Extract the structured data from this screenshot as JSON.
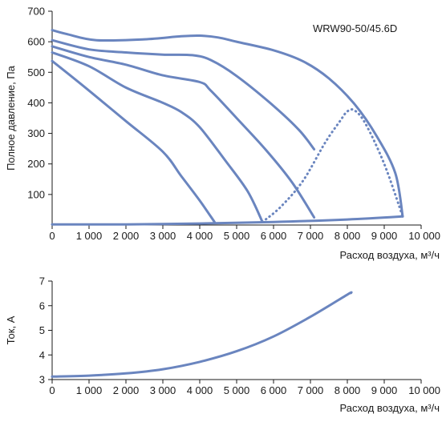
{
  "chart_data": [
    {
      "type": "line",
      "title": "",
      "model_label": "WRW90-50/45.6D",
      "ylabel": "Полное давление, Па",
      "xlabel": "Расход воздуха, м³/ч",
      "xlim": [
        0,
        10000
      ],
      "ylim": [
        0,
        700
      ],
      "x_ticks": [
        0,
        1000,
        2000,
        3000,
        4000,
        5000,
        6000,
        7000,
        8000,
        9000,
        10000
      ],
      "x_tick_labels": [
        "0",
        "1 000",
        "2 000",
        "3 000",
        "4 000",
        "5 000",
        "6 000",
        "7 000",
        "8 000",
        "9 000",
        "10 000"
      ],
      "y_ticks": [
        100,
        200,
        300,
        400,
        500,
        600,
        700
      ],
      "y_tick_labels": [
        "100",
        "200",
        "300",
        "400",
        "500",
        "600",
        "700"
      ],
      "grid": false,
      "colors": {
        "curve": "#6a85bf",
        "text": "#1a1a1a",
        "axis": "#1a1a1a"
      },
      "series": [
        {
          "style": "solid",
          "points": [
            [
              0,
              638
            ],
            [
              400,
              625
            ],
            [
              1200,
              605
            ],
            [
              2500,
              608
            ],
            [
              3500,
              618
            ],
            [
              4000,
              620
            ],
            [
              4500,
              614
            ],
            [
              5000,
              600
            ],
            [
              6000,
              572
            ],
            [
              6800,
              536
            ],
            [
              7500,
              480
            ],
            [
              8200,
              395
            ],
            [
              8800,
              290
            ],
            [
              9300,
              170
            ],
            [
              9500,
              28
            ]
          ]
        },
        {
          "style": "solid",
          "points": [
            [
              0,
              605
            ],
            [
              1000,
              575
            ],
            [
              2000,
              565
            ],
            [
              3000,
              558
            ],
            [
              3800,
              556
            ],
            [
              4300,
              540
            ],
            [
              5000,
              488
            ],
            [
              6000,
              390
            ],
            [
              6700,
              310
            ],
            [
              7100,
              248
            ]
          ]
        },
        {
          "style": "solid",
          "points": [
            [
              0,
              585
            ],
            [
              1000,
              550
            ],
            [
              2000,
              525
            ],
            [
              3000,
              490
            ],
            [
              4000,
              468
            ],
            [
              4300,
              440
            ],
            [
              5000,
              350
            ],
            [
              5800,
              245
            ],
            [
              6500,
              140
            ],
            [
              7100,
              25
            ]
          ]
        },
        {
          "style": "solid",
          "points": [
            [
              0,
              565
            ],
            [
              1000,
              520
            ],
            [
              2000,
              450
            ],
            [
              3000,
              400
            ],
            [
              3500,
              370
            ],
            [
              4000,
              320
            ],
            [
              4700,
              210
            ],
            [
              5300,
              110
            ],
            [
              5700,
              10
            ]
          ]
        },
        {
          "style": "solid",
          "points": [
            [
              0,
              537
            ],
            [
              1000,
              440
            ],
            [
              2000,
              340
            ],
            [
              3000,
              240
            ],
            [
              3500,
              160
            ],
            [
              4000,
              80
            ],
            [
              4400,
              10
            ]
          ]
        },
        {
          "style": "solid",
          "points": [
            [
              0,
              2
            ],
            [
              2000,
              2
            ],
            [
              4000,
              5
            ],
            [
              6000,
              10
            ],
            [
              8000,
              18
            ],
            [
              9500,
              28
            ]
          ]
        },
        {
          "style": "dotted",
          "points": [
            [
              5700,
              10
            ],
            [
              6200,
              60
            ],
            [
              6800,
              145
            ],
            [
              7400,
              270
            ],
            [
              7800,
              340
            ],
            [
              8000,
              372
            ],
            [
              8200,
              375
            ],
            [
              8500,
              330
            ],
            [
              9000,
              200
            ],
            [
              9500,
              28
            ]
          ]
        }
      ]
    },
    {
      "type": "line",
      "title": "",
      "ylabel": "Ток, А",
      "xlabel": "Расход воздуха, м³/ч",
      "xlim": [
        0,
        10000
      ],
      "ylim": [
        3,
        7
      ],
      "x_ticks": [
        0,
        1000,
        2000,
        3000,
        4000,
        5000,
        6000,
        7000,
        8000,
        9000,
        10000
      ],
      "x_tick_labels": [
        "0",
        "1 000",
        "2 000",
        "3 000",
        "4 000",
        "5 000",
        "6 000",
        "7 000",
        "8 000",
        "9 000",
        "10 000"
      ],
      "y_ticks": [
        3,
        4,
        5,
        6,
        7
      ],
      "y_tick_labels": [
        "3",
        "4",
        "5",
        "6",
        "7"
      ],
      "grid": false,
      "colors": {
        "curve": "#6a85bf",
        "text": "#1a1a1a",
        "axis": "#1a1a1a"
      },
      "series": [
        {
          "style": "solid",
          "points": [
            [
              0,
              3.12
            ],
            [
              1000,
              3.16
            ],
            [
              2000,
              3.25
            ],
            [
              3000,
              3.42
            ],
            [
              4000,
              3.72
            ],
            [
              5000,
              4.15
            ],
            [
              6000,
              4.75
            ],
            [
              7000,
              5.55
            ],
            [
              8000,
              6.45
            ],
            [
              8100,
              6.52
            ]
          ]
        }
      ]
    }
  ]
}
